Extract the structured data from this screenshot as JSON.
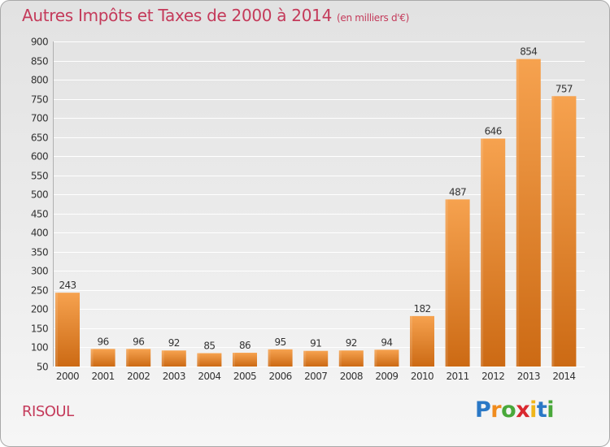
{
  "title": "Autres Impôts et Taxes de 2000 à 2014",
  "title_unit": "(en milliers d'€)",
  "place": "RISOUL",
  "brand": {
    "letters": [
      "P",
      "r",
      "o",
      "x",
      "i",
      "t",
      "i"
    ],
    "colors": [
      "#2a78c6",
      "#f08c1e",
      "#49a83a",
      "#d9282f",
      "#f0b61a",
      "#2a78c6",
      "#49a83a"
    ]
  },
  "colors": {
    "title": "#c43a5a",
    "bar_light": "#f6a24f",
    "bar_dark": "#cc6a14",
    "grid": "#ffffff"
  },
  "chart_data": {
    "type": "bar",
    "title": "Autres Impôts et Taxes de 2000 à 2014",
    "subtitle": "(en milliers d'€)",
    "xlabel": "",
    "ylabel": "",
    "categories": [
      "2000",
      "2001",
      "2002",
      "2003",
      "2004",
      "2005",
      "2006",
      "2007",
      "2008",
      "2009",
      "2010",
      "2011",
      "2012",
      "2013",
      "2014"
    ],
    "values": [
      243,
      96,
      96,
      92,
      85,
      86,
      95,
      91,
      92,
      94,
      182,
      487,
      646,
      854,
      757
    ],
    "ylim": [
      50,
      900
    ],
    "yticks": [
      50,
      100,
      150,
      200,
      250,
      300,
      350,
      400,
      450,
      500,
      550,
      600,
      650,
      700,
      750,
      800,
      850,
      900
    ],
    "grid": true,
    "legend": "none"
  }
}
